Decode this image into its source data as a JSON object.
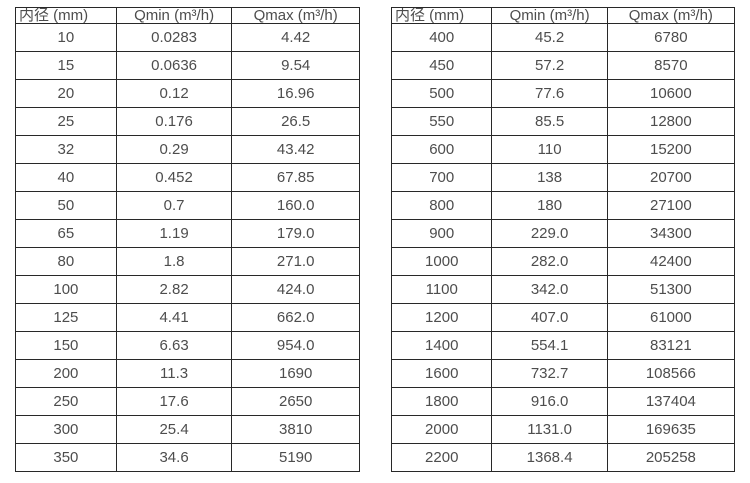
{
  "colors": {
    "background": "#ffffff",
    "table_border": "#282828",
    "text": "#4d4d4d"
  },
  "chart_data": [
    {
      "type": "table",
      "name": "flow-rate-table-small-diameters",
      "columns": [
        "内径 (mm)",
        "Qmin (m³/h)",
        "Qmax (m³/h)"
      ],
      "rows": [
        [
          "10",
          "0.0283",
          "4.42"
        ],
        [
          "15",
          "0.0636",
          "9.54"
        ],
        [
          "20",
          "0.12",
          "16.96"
        ],
        [
          "25",
          "0.176",
          "26.5"
        ],
        [
          "32",
          "0.29",
          "43.42"
        ],
        [
          "40",
          "0.452",
          "67.85"
        ],
        [
          "50",
          "0.7",
          "160.0"
        ],
        [
          "65",
          "1.19",
          "179.0"
        ],
        [
          "80",
          "1.8",
          "271.0"
        ],
        [
          "100",
          "2.82",
          "424.0"
        ],
        [
          "125",
          "4.41",
          "662.0"
        ],
        [
          "150",
          "6.63",
          "954.0"
        ],
        [
          "200",
          "11.3",
          "1690"
        ],
        [
          "250",
          "17.6",
          "2650"
        ],
        [
          "300",
          "25.4",
          "3810"
        ],
        [
          "350",
          "34.6",
          "5190"
        ]
      ]
    },
    {
      "type": "table",
      "name": "flow-rate-table-large-diameters",
      "columns": [
        "内径 (mm)",
        "Qmin (m³/h)",
        "Qmax (m³/h)"
      ],
      "rows": [
        [
          "400",
          "45.2",
          "6780"
        ],
        [
          "450",
          "57.2",
          "8570"
        ],
        [
          "500",
          "77.6",
          "10600"
        ],
        [
          "550",
          "85.5",
          "12800"
        ],
        [
          "600",
          "110",
          "15200"
        ],
        [
          "700",
          "138",
          "20700"
        ],
        [
          "800",
          "180",
          "27100"
        ],
        [
          "900",
          "229.0",
          "34300"
        ],
        [
          "1000",
          "282.0",
          "42400"
        ],
        [
          "1100",
          "342.0",
          "51300"
        ],
        [
          "1200",
          "407.0",
          "61000"
        ],
        [
          "1400",
          "554.1",
          "83121"
        ],
        [
          "1600",
          "732.7",
          "108566"
        ],
        [
          "1800",
          "916.0",
          "137404"
        ],
        [
          "2000",
          "1131.0",
          "169635"
        ],
        [
          "2200",
          "1368.4",
          "205258"
        ]
      ]
    }
  ]
}
